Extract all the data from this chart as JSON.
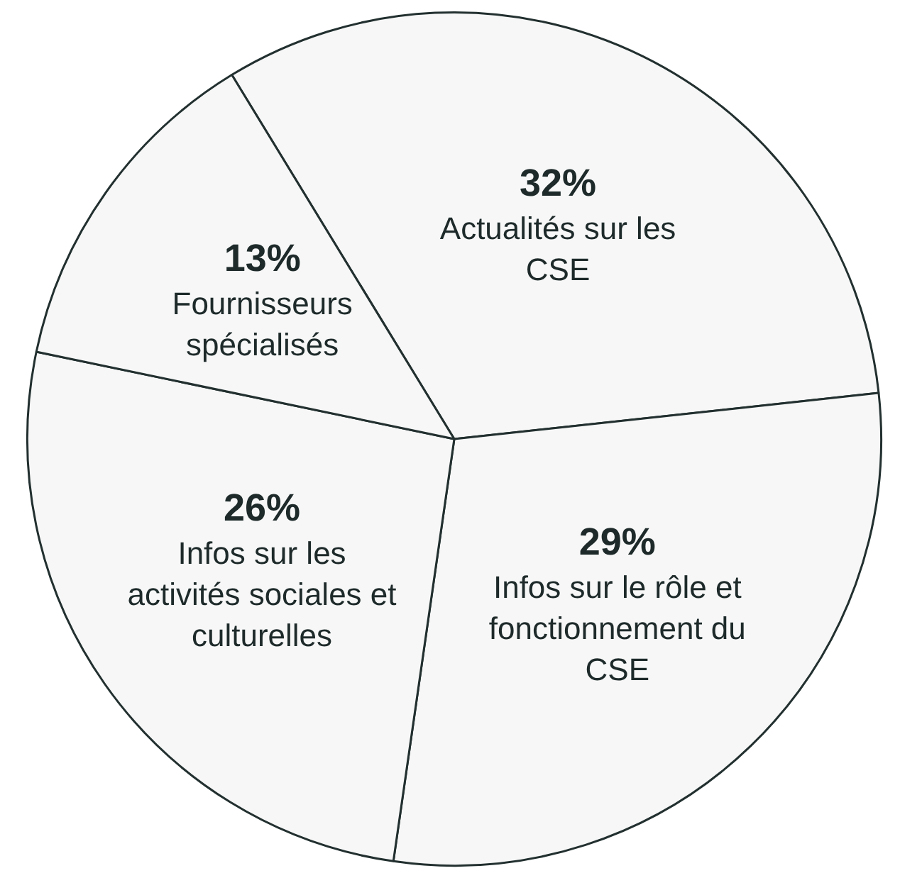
{
  "chart_data": {
    "type": "pie",
    "categories": [
      "Actualités sur les CSE",
      "Infos sur le rôle et fonctionnement du CSE",
      "Infos sur les activités sociales et culturelles",
      "Fournisseurs spécialisés"
    ],
    "values": [
      32,
      29,
      26,
      13
    ],
    "value_labels": [
      "32%",
      "29%",
      "26%",
      "13%"
    ],
    "colors": [
      "#f7f7f7",
      "#f7f7f7",
      "#f7f7f7",
      "#f7f7f7"
    ],
    "legend": false
  }
}
